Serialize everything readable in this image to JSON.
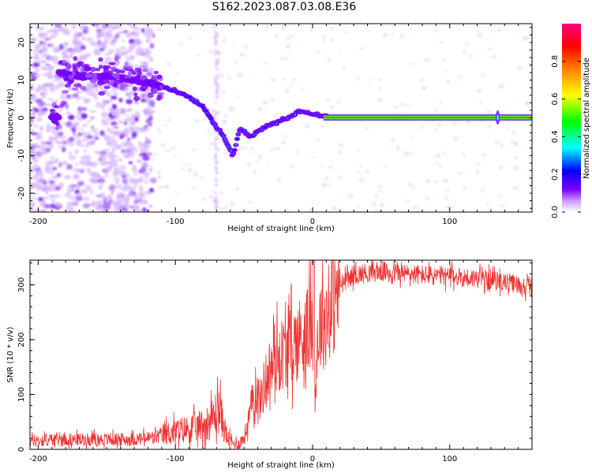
{
  "title": "S162.2023.087.03.08.E36",
  "chart_data": [
    {
      "type": "heatmap",
      "title": "",
      "xlabel": "Height of straight line (km)",
      "ylabel": "Frequency (Hz)",
      "xlim": [
        -206,
        160
      ],
      "ylim": [
        -25,
        25
      ],
      "xticks": [
        -200,
        -100,
        0,
        100
      ],
      "yticks": [
        -20,
        -10,
        0,
        10,
        20
      ],
      "colorbar": {
        "label": "Normalized spectral amplitude",
        "range": [
          0.0,
          1.0
        ],
        "ticks": [
          0.0,
          0.2,
          0.4,
          0.6,
          0.8
        ],
        "tick_labels": [
          "0.0",
          "0.2",
          "0.4",
          "0.6",
          "0.8"
        ],
        "colors": [
          "#ffffff",
          "#cc99ff",
          "#7a00ff",
          "#0000ff",
          "#00ffff",
          "#00ff00",
          "#ffff00",
          "#ff8000",
          "#ff0000",
          "#ff0080"
        ]
      },
      "ridge": [
        {
          "x": -185,
          "y": 12
        },
        {
          "x": -170,
          "y": 11
        },
        {
          "x": -150,
          "y": 11
        },
        {
          "x": -130,
          "y": 10
        },
        {
          "x": -115,
          "y": 9
        },
        {
          "x": -100,
          "y": 7
        },
        {
          "x": -90,
          "y": 5.5
        },
        {
          "x": -80,
          "y": 3
        },
        {
          "x": -73,
          "y": -1
        },
        {
          "x": -65,
          "y": -5
        },
        {
          "x": -58,
          "y": -10
        },
        {
          "x": -53,
          "y": -3
        },
        {
          "x": -45,
          "y": -5
        },
        {
          "x": -35,
          "y": -2.5
        },
        {
          "x": -25,
          "y": -1
        },
        {
          "x": -15,
          "y": 0.5
        },
        {
          "x": -10,
          "y": 2
        },
        {
          "x": 0,
          "y": 1
        },
        {
          "x": 10,
          "y": 0.3
        },
        {
          "x": 40,
          "y": 0.1
        },
        {
          "x": 100,
          "y": 0.1
        },
        {
          "x": 160,
          "y": 0.1
        }
      ]
    },
    {
      "type": "line",
      "title": "",
      "xlabel": "Height of straight line (km)",
      "ylabel": "SNR (10 * v/v)",
      "xlim": [
        -206,
        160
      ],
      "ylim": [
        0,
        345
      ],
      "xticks": [
        -200,
        -100,
        0,
        100
      ],
      "yticks": [
        0,
        100,
        200,
        300
      ],
      "color": "#ee3333",
      "series": [
        {
          "x": [
            -206,
            -190,
            -170,
            -150,
            -130,
            -115,
            -105,
            -95,
            -85,
            -75,
            -68,
            -65,
            -62,
            -58,
            -54,
            -50,
            -46,
            -42,
            -38,
            -34,
            -30,
            -26,
            -22,
            -18,
            -14,
            -10,
            -6,
            -2,
            0,
            2,
            4,
            6,
            10,
            15,
            20,
            25,
            30,
            40,
            50,
            60,
            80,
            100,
            120,
            140,
            160
          ],
          "y": [
            15,
            18,
            18,
            18,
            18,
            22,
            30,
            35,
            40,
            50,
            75,
            45,
            20,
            10,
            10,
            20,
            60,
            110,
            90,
            130,
            150,
            170,
            175,
            185,
            190,
            200,
            215,
            220,
            250,
            100,
            210,
            230,
            240,
            270,
            300,
            310,
            318,
            322,
            324,
            322,
            318,
            315,
            312,
            305,
            295
          ]
        }
      ]
    }
  ]
}
